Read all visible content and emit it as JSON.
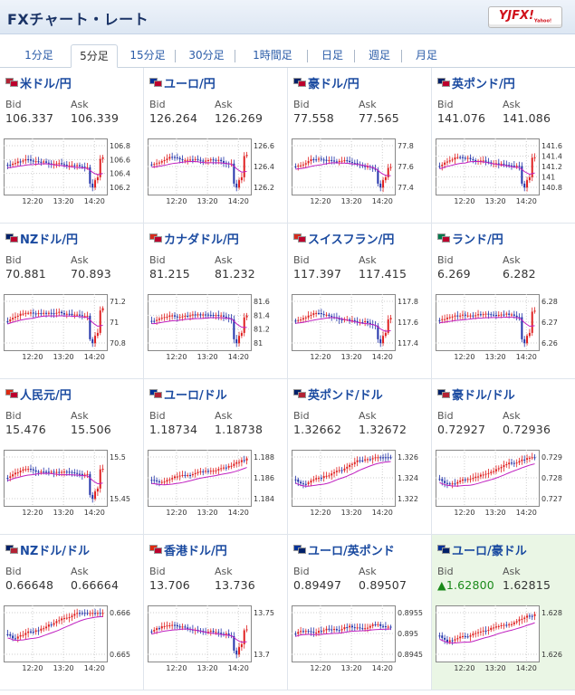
{
  "header": {
    "title": "FXチャート・レート",
    "logo_text": "YJFX!",
    "logo_sub": "Yahoo!"
  },
  "tabs": [
    {
      "label": "1分足",
      "active": false
    },
    {
      "label": "5分足",
      "active": true
    },
    {
      "label": "15分足",
      "active": false
    },
    {
      "label": "30分足",
      "active": false
    },
    {
      "label": "1時間足",
      "active": false
    },
    {
      "label": "日足",
      "active": false
    },
    {
      "label": "週足",
      "active": false
    },
    {
      "label": "月足",
      "active": false
    }
  ],
  "labels": {
    "bid": "Bid",
    "ask": "Ask"
  },
  "pairs": [
    {
      "name": "米ドル/円",
      "bid": "106.337",
      "ask": "106.339",
      "flags": [
        "#b22234",
        "#bc002d"
      ],
      "yticks": [
        "106.8",
        "106.6",
        "106.4",
        "106.2"
      ],
      "xticks": [
        "12:20",
        "13:20",
        "14:20"
      ],
      "trend": "down_end"
    },
    {
      "name": "ユーロ/円",
      "bid": "126.264",
      "ask": "126.269",
      "flags": [
        "#003399",
        "#bc002d"
      ],
      "yticks": [
        "126.6",
        "126.4",
        "126.2"
      ],
      "xticks": [
        "12:20",
        "13:20",
        "14:20"
      ],
      "trend": "down_end"
    },
    {
      "name": "豪ドル/円",
      "bid": "77.558",
      "ask": "77.565",
      "flags": [
        "#012169",
        "#bc002d"
      ],
      "yticks": [
        "77.8",
        "77.6",
        "77.4"
      ],
      "xticks": [
        "12:20",
        "13:20",
        "14:20"
      ],
      "trend": "down_end"
    },
    {
      "name": "英ポンド/円",
      "bid": "141.076",
      "ask": "141.086",
      "flags": [
        "#012169",
        "#bc002d"
      ],
      "yticks": [
        "141.6",
        "141.4",
        "141.2",
        "141",
        "140.8"
      ],
      "xticks": [
        "12:20",
        "13:20",
        "14:20"
      ],
      "trend": "down_end"
    },
    {
      "name": "NZドル/円",
      "bid": "70.881",
      "ask": "70.893",
      "flags": [
        "#012169",
        "#bc002d"
      ],
      "yticks": [
        "71.2",
        "71",
        "70.8"
      ],
      "xticks": [
        "12:20",
        "13:20",
        "14:20"
      ],
      "trend": "down_end"
    },
    {
      "name": "カナダドル/円",
      "bid": "81.215",
      "ask": "81.232",
      "flags": [
        "#d52b1e",
        "#bc002d"
      ],
      "yticks": [
        "81.6",
        "81.4",
        "81.2",
        "81"
      ],
      "xticks": [
        "12:20",
        "13:20",
        "14:20"
      ],
      "trend": "down_end"
    },
    {
      "name": "スイスフラン/円",
      "bid": "117.397",
      "ask": "117.415",
      "flags": [
        "#d52b1e",
        "#bc002d"
      ],
      "yticks": [
        "117.8",
        "117.6",
        "117.4"
      ],
      "xticks": [
        "12:20",
        "13:20",
        "14:20"
      ],
      "trend": "down_end"
    },
    {
      "name": "ランド/円",
      "bid": "6.269",
      "ask": "6.282",
      "flags": [
        "#007a4d",
        "#bc002d"
      ],
      "yticks": [
        "6.28",
        "6.27",
        "6.26"
      ],
      "xticks": [
        "12:20",
        "13:20",
        "14:20"
      ],
      "trend": "down_end"
    },
    {
      "name": "人民元/円",
      "bid": "15.476",
      "ask": "15.506",
      "flags": [
        "#de2910",
        "#bc002d"
      ],
      "yticks": [
        "15.5",
        "15.45"
      ],
      "xticks": [
        "12:20",
        "13:20",
        "14:20"
      ],
      "trend": "down_end"
    },
    {
      "name": "ユーロ/ドル",
      "bid": "1.18734",
      "ask": "1.18738",
      "flags": [
        "#003399",
        "#b22234"
      ],
      "yticks": [
        "1.188",
        "1.186",
        "1.184"
      ],
      "xticks": [
        "12:20",
        "13:20",
        "14:20"
      ],
      "trend": "up"
    },
    {
      "name": "英ポンド/ドル",
      "bid": "1.32662",
      "ask": "1.32672",
      "flags": [
        "#012169",
        "#b22234"
      ],
      "yticks": [
        "1.326",
        "1.324",
        "1.322"
      ],
      "xticks": [
        "12:20",
        "13:20",
        "14:20"
      ],
      "trend": "up"
    },
    {
      "name": "豪ドル/ドル",
      "bid": "0.72927",
      "ask": "0.72936",
      "flags": [
        "#012169",
        "#b22234"
      ],
      "yticks": [
        "0.729",
        "0.728",
        "0.727"
      ],
      "xticks": [
        "12:20",
        "13:20",
        "14:20"
      ],
      "trend": "up"
    },
    {
      "name": "NZドル/ドル",
      "bid": "0.66648",
      "ask": "0.66664",
      "flags": [
        "#012169",
        "#b22234"
      ],
      "yticks": [
        "0.666",
        "0.665"
      ],
      "xticks": [
        "12:20",
        "13:20",
        "14:20"
      ],
      "trend": "up"
    },
    {
      "name": "香港ドル/円",
      "bid": "13.706",
      "ask": "13.736",
      "flags": [
        "#de2910",
        "#bc002d"
      ],
      "yticks": [
        "13.75",
        "13.7"
      ],
      "xticks": [
        "12:20",
        "13:20",
        "14:20"
      ],
      "trend": "down_end"
    },
    {
      "name": "ユーロ/英ポンド",
      "bid": "0.89497",
      "ask": "0.89507",
      "flags": [
        "#003399",
        "#012169"
      ],
      "yticks": [
        "0.8955",
        "0.895",
        "0.8945"
      ],
      "xticks": [
        "12:20",
        "13:20",
        "14:20"
      ],
      "trend": "mixed"
    },
    {
      "name": "ユーロ/豪ドル",
      "bid": "▲1.62800",
      "ask": "1.62815",
      "flags": [
        "#003399",
        "#012169"
      ],
      "yticks": [
        "1.628",
        "1.626"
      ],
      "xticks": [
        "12:20",
        "13:20",
        "14:20"
      ],
      "trend": "up",
      "highlight": true,
      "bid_up": true
    }
  ],
  "colors": {
    "up_candle": "#e02020",
    "down_candle": "#2233aa",
    "ma_line": "#c020c0",
    "grid": "#cfcfcf",
    "link": "#1a4aa0",
    "bid_up": "#1a8a1a"
  }
}
